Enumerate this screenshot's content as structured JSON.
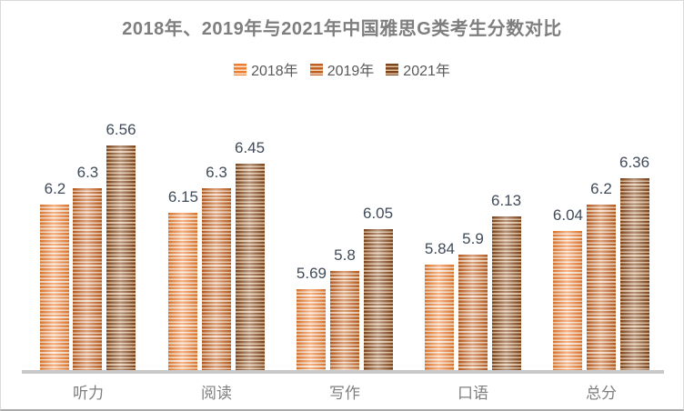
{
  "title": "2018年、2019年与2021年中国雅思G类考生分数对比",
  "colors": {
    "title_text": "#7E7E7E",
    "data_label_text": "#414B5A",
    "category_text": "#7F7F7F",
    "legend_text": "#595959",
    "axis_line": "#C9C9C9",
    "series": [
      {
        "name": "2018年",
        "stripe": "#ED7D31",
        "light": "#FBE8D4"
      },
      {
        "name": "2019年",
        "stripe": "#C05F21",
        "light": "#F2D7BE"
      },
      {
        "name": "2021年",
        "stripe": "#7E451C",
        "light": "#E2C3A2"
      }
    ]
  },
  "chart_data": {
    "type": "bar",
    "title": "2018年、2019年与2021年中国雅思G类考生分数对比",
    "categories": [
      "听力",
      "阅读",
      "写作",
      "口语",
      "总分"
    ],
    "category_slugs": [
      "listening",
      "reading",
      "writing",
      "speaking",
      "overall"
    ],
    "series": [
      {
        "name": "2018年",
        "slug": "2018",
        "values": [
          6.2,
          6.15,
          5.69,
          5.84,
          6.04
        ]
      },
      {
        "name": "2019年",
        "slug": "2019",
        "values": [
          6.3,
          6.3,
          5.8,
          5.9,
          6.2
        ]
      },
      {
        "name": "2021年",
        "slug": "2021",
        "values": [
          6.56,
          6.45,
          6.05,
          6.13,
          6.36
        ]
      }
    ],
    "ylim": [
      5.2,
      6.8
    ],
    "legend_position": "top",
    "grid": false,
    "data_labels": true,
    "xlabel": "",
    "ylabel": ""
  }
}
